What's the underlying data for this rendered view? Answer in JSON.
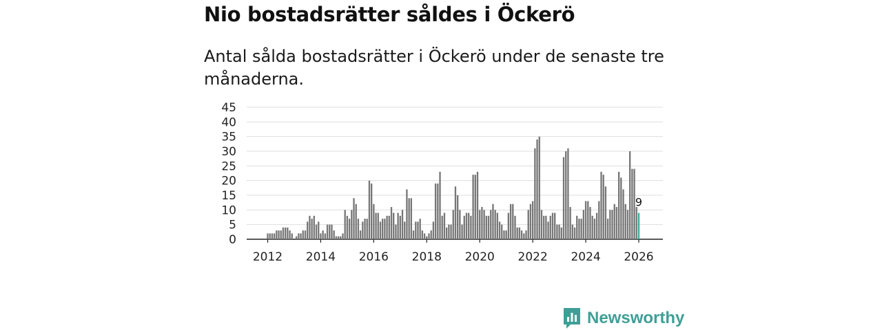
{
  "title": "Nio bostadsrätter såldes i Öckerö",
  "subtitle": "Antal sålda bostadsrätter i Öckerö under de senaste tre månaderna.",
  "brand": {
    "name": "Newsworthy",
    "icon": "newsworthy-logo-icon"
  },
  "colors": {
    "bar": "#767676",
    "highlight": "#3aa89c",
    "grid": "#dddddd",
    "axis": "#222222",
    "brand": "#3f9f96"
  },
  "chart_data": {
    "type": "bar",
    "title": "Nio bostadsrätter såldes i Öckerö",
    "xlabel": "",
    "ylabel": "",
    "ylim": [
      0,
      45
    ],
    "yticks": [
      "0",
      "5",
      "10",
      "15",
      "20",
      "25",
      "30",
      "35",
      "40",
      "45"
    ],
    "xticks": [
      "2012",
      "2014",
      "2016",
      "2018",
      "2020",
      "2022",
      "2024",
      "2026"
    ],
    "start": "2012-01",
    "values": [
      2,
      2,
      2,
      2,
      3,
      3,
      3,
      4,
      4,
      4,
      3,
      2,
      0,
      1,
      2,
      2,
      3,
      3,
      6,
      8,
      7,
      8,
      5,
      6,
      2,
      3,
      2,
      5,
      5,
      5,
      3,
      1,
      1,
      1,
      2,
      10,
      8,
      7,
      10,
      14,
      12,
      7,
      3,
      6,
      7,
      7,
      20,
      19,
      12,
      9,
      9,
      6,
      7,
      7,
      8,
      8,
      11,
      9,
      5,
      9,
      8,
      10,
      6,
      17,
      14,
      14,
      3,
      6,
      6,
      7,
      3,
      2,
      1,
      2,
      3,
      6,
      19,
      19,
      23,
      8,
      9,
      4,
      5,
      5,
      10,
      18,
      15,
      10,
      5,
      8,
      9,
      9,
      8,
      22,
      22,
      23,
      10,
      11,
      10,
      8,
      8,
      10,
      12,
      10,
      9,
      6,
      5,
      3,
      3,
      9,
      12,
      12,
      8,
      4,
      4,
      3,
      2,
      3,
      10,
      12,
      13,
      31,
      34,
      35,
      10,
      8,
      8,
      6,
      8,
      9,
      9,
      5,
      5,
      4,
      28,
      30,
      31,
      11,
      5,
      4,
      8,
      7,
      7,
      10,
      13,
      13,
      11,
      8,
      7,
      9,
      13,
      23,
      22,
      18,
      7,
      10,
      10,
      12,
      11,
      23,
      21,
      17,
      12,
      10,
      30,
      24,
      24,
      11,
      9
    ],
    "highlight_label": "9"
  }
}
